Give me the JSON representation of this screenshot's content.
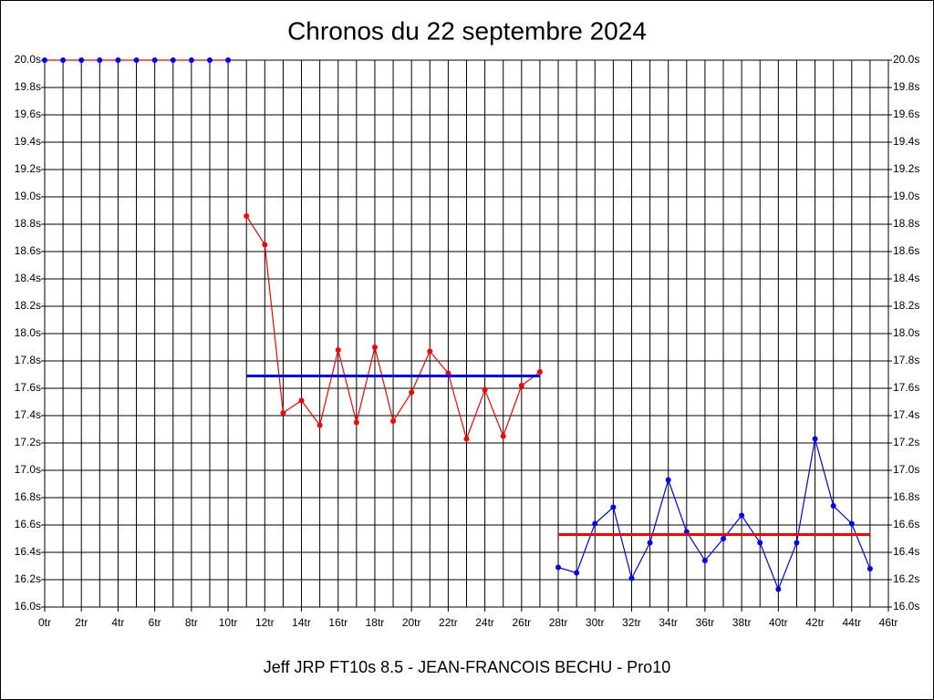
{
  "chart_data": {
    "type": "line",
    "title": "Chronos du 22 septembre 2024",
    "footer": "Jeff JRP FT10s 8.5 - JEAN-FRANCOIS BECHU - Pro10",
    "xlim": [
      0,
      46
    ],
    "xticks": [
      {
        "value": 0,
        "label": "0tr"
      },
      {
        "value": 2,
        "label": "2tr"
      },
      {
        "value": 4,
        "label": "4tr"
      },
      {
        "value": 6,
        "label": "6tr"
      },
      {
        "value": 8,
        "label": "8tr"
      },
      {
        "value": 10,
        "label": "10tr"
      },
      {
        "value": 12,
        "label": "12tr"
      },
      {
        "value": 14,
        "label": "14tr"
      },
      {
        "value": 16,
        "label": "16tr"
      },
      {
        "value": 18,
        "label": "18tr"
      },
      {
        "value": 20,
        "label": "20tr"
      },
      {
        "value": 22,
        "label": "22tr"
      },
      {
        "value": 24,
        "label": "24tr"
      },
      {
        "value": 26,
        "label": "26tr"
      },
      {
        "value": 28,
        "label": "28tr"
      },
      {
        "value": 30,
        "label": "30tr"
      },
      {
        "value": 32,
        "label": "32tr"
      },
      {
        "value": 34,
        "label": "34tr"
      },
      {
        "value": 36,
        "label": "36tr"
      },
      {
        "value": 38,
        "label": "38tr"
      },
      {
        "value": 40,
        "label": "40tr"
      },
      {
        "value": 42,
        "label": "42tr"
      },
      {
        "value": 44,
        "label": "44tr"
      },
      {
        "value": 46,
        "label": "46tr"
      }
    ],
    "xminor": [
      1,
      3,
      5,
      7,
      9,
      11,
      13,
      15,
      17,
      19,
      21,
      23,
      25,
      27,
      29,
      31,
      33,
      35,
      37,
      39,
      41,
      43,
      45
    ],
    "ylim": [
      16.0,
      20.0
    ],
    "yticks": [
      {
        "value": 16.0,
        "label": "16.0s"
      },
      {
        "value": 16.2,
        "label": "16.2s"
      },
      {
        "value": 16.4,
        "label": "16.4s"
      },
      {
        "value": 16.6,
        "label": "16.6s"
      },
      {
        "value": 16.8,
        "label": "16.8s"
      },
      {
        "value": 17.0,
        "label": "17.0s"
      },
      {
        "value": 17.2,
        "label": "17.2s"
      },
      {
        "value": 17.4,
        "label": "17.4s"
      },
      {
        "value": 17.6,
        "label": "17.6s"
      },
      {
        "value": 17.8,
        "label": "17.8s"
      },
      {
        "value": 18.0,
        "label": "18.0s"
      },
      {
        "value": 18.2,
        "label": "18.2s"
      },
      {
        "value": 18.4,
        "label": "18.4s"
      },
      {
        "value": 18.6,
        "label": "18.6s"
      },
      {
        "value": 18.8,
        "label": "18.8s"
      },
      {
        "value": 19.0,
        "label": "19.0s"
      },
      {
        "value": 19.2,
        "label": "19.2s"
      },
      {
        "value": 19.4,
        "label": "19.4s"
      },
      {
        "value": 19.6,
        "label": "19.6s"
      },
      {
        "value": 19.8,
        "label": "19.8s"
      },
      {
        "value": 20.0,
        "label": "20.0s"
      }
    ],
    "right_axis": true,
    "grid": true,
    "series": [
      {
        "color": "#ff0000",
        "marker_color": "#0000ff",
        "markers": true,
        "x": [
          0,
          1,
          2,
          3,
          4,
          5,
          6,
          7,
          8,
          9,
          10
        ],
        "values": [
          20.0,
          20.0,
          20.0,
          20.0,
          20.0,
          20.0,
          20.0,
          20.0,
          20.0,
          20.0,
          20.0
        ]
      },
      {
        "color": "#ff0000",
        "marker_color": "#ff0000",
        "markers": true,
        "x": [
          11,
          12,
          13,
          14,
          15,
          16,
          17,
          18,
          19,
          20,
          21,
          22,
          23,
          24,
          25,
          26,
          27
        ],
        "values": [
          18.86,
          18.65,
          17.42,
          17.51,
          17.33,
          17.88,
          17.35,
          17.9,
          17.36,
          17.57,
          17.87,
          17.71,
          17.23,
          17.59,
          17.25,
          17.62,
          17.72
        ]
      },
      {
        "color": "#0000ff",
        "markers": false,
        "x": [
          11,
          27
        ],
        "values": [
          17.69,
          17.69
        ]
      },
      {
        "color": "#0000ff",
        "marker_color": "#0000ff",
        "markers": true,
        "x": [
          28,
          29,
          30,
          31,
          32,
          33,
          34,
          35,
          36,
          37,
          38,
          39,
          40,
          41,
          42,
          43,
          44,
          45
        ],
        "values": [
          16.29,
          16.25,
          16.61,
          16.73,
          16.21,
          16.47,
          16.93,
          16.55,
          16.34,
          16.5,
          16.67,
          16.47,
          16.13,
          16.47,
          17.23,
          16.74,
          16.61,
          16.28
        ]
      },
      {
        "color": "#ff0000",
        "markers": false,
        "x": [
          28,
          45
        ],
        "values": [
          16.53,
          16.53
        ]
      }
    ]
  }
}
